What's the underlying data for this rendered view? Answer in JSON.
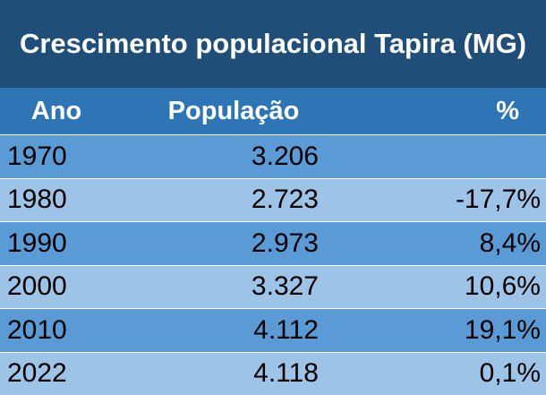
{
  "chart_data": {
    "type": "table",
    "title": "Crescimento populacional Tapira (MG)",
    "columns": [
      "Ano",
      "População",
      "%"
    ],
    "rows": [
      {
        "ano": "1970",
        "populacao": "3.206",
        "pct": ""
      },
      {
        "ano": "1980",
        "populacao": "2.723",
        "pct": "-17,7%"
      },
      {
        "ano": "1990",
        "populacao": "2.973",
        "pct": "8,4%"
      },
      {
        "ano": "2000",
        "populacao": "3.327",
        "pct": "10,6%"
      },
      {
        "ano": "2010",
        "populacao": "4.112",
        "pct": "19,1%"
      },
      {
        "ano": "2022",
        "populacao": "4.118",
        "pct": "0,1%"
      }
    ]
  },
  "colors": {
    "title_bg": "#1f4e79",
    "header_bg": "#2e75b6",
    "row_dark": "#5b9bd5",
    "row_light": "#9dc3e6"
  }
}
